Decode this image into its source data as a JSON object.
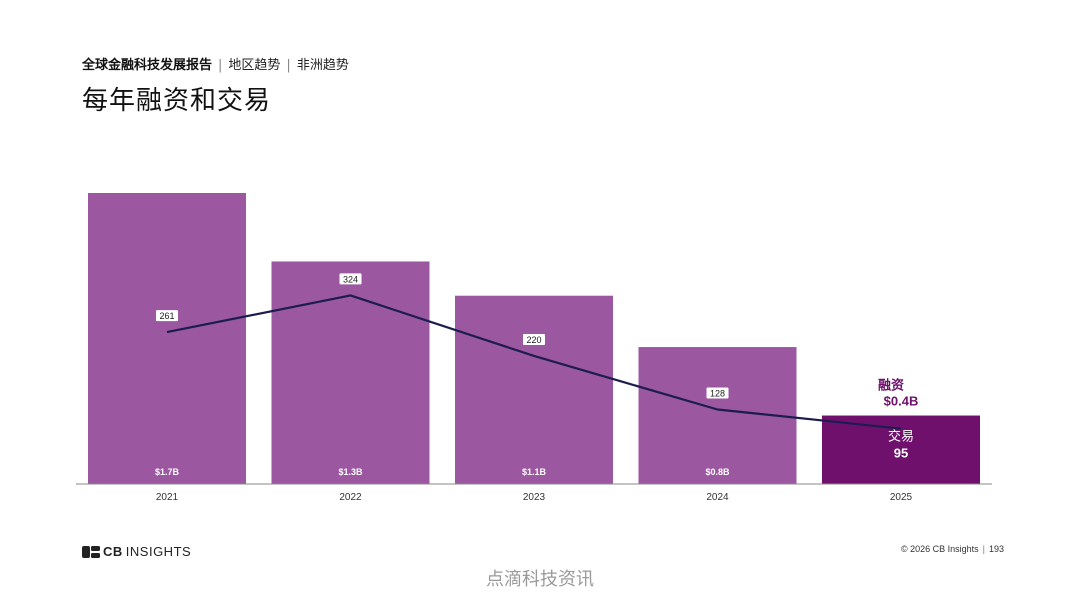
{
  "header": {
    "report_title": "全球金融科技发展报告",
    "section": "地区趋势",
    "subsection": "非洲趋势",
    "separator": "|",
    "page_title": "每年融资和交易"
  },
  "colors": {
    "bar": "#9b57a0",
    "bar_highlight": "#6f116c",
    "line": "#1c1d4f",
    "highlight_label": "#6f116c"
  },
  "chart_data": {
    "type": "bar",
    "title": "每年融资和交易",
    "categories": [
      "2021",
      "2022",
      "2023",
      "2024",
      "2025"
    ],
    "series": [
      {
        "name": "融资",
        "unit": "$B",
        "values": [
          1.7,
          1.3,
          1.1,
          0.8,
          0.4
        ],
        "labels": [
          "$1.7B",
          "$1.3B",
          "$1.1B",
          "$0.8B",
          "$0.4B"
        ]
      },
      {
        "name": "交易",
        "type": "line",
        "values": [
          261,
          324,
          220,
          128,
          95
        ],
        "labels": [
          "261",
          "324",
          "220",
          "128",
          "95"
        ]
      }
    ],
    "highlight": {
      "index": 4,
      "funding_name": "融资",
      "funding_value": "$0.4B",
      "deals_name": "交易",
      "deals_value": "95"
    },
    "funding_axis_max": 1.7,
    "deals_axis_max": 500,
    "grid": false
  },
  "footer": {
    "brand_prefix": "CB",
    "brand_name": "INSIGHTS",
    "copyright": "© 2026 CB Insights",
    "separator": "|",
    "page_number": "193"
  },
  "watermark": "点滴科技资讯"
}
